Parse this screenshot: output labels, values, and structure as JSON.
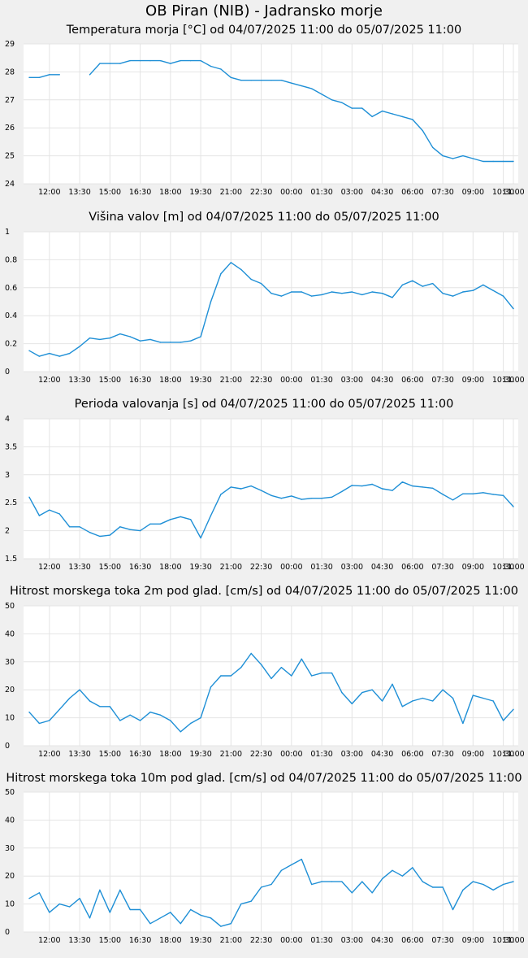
{
  "page_title": "OB Piran (NIB) - Jadransko morje",
  "line_color": "#1e8fd6",
  "x_tick_labels": [
    "12:00",
    "13:30",
    "15:00",
    "16:30",
    "18:00",
    "19:30",
    "21:00",
    "22:30",
    "00:00",
    "01:30",
    "03:00",
    "04:30",
    "06:00",
    "07:30",
    "09:00",
    "10:30",
    "11:00"
  ],
  "chart_data": [
    {
      "type": "line",
      "title": "Temperatura morja [°C] od 04/07/2025 11:00 do 05/07/2025 11:00",
      "ylim": [
        24,
        29
      ],
      "y_ticks": [
        "24",
        "25",
        "26",
        "27",
        "28",
        "29"
      ],
      "series": [
        {
          "values": [
            27.8,
            27.8,
            27.9,
            27.9,
            null,
            null,
            27.9,
            28.3,
            28.3,
            28.3,
            28.4,
            28.4,
            28.4,
            28.4,
            28.3,
            28.4,
            28.4,
            28.4,
            28.2,
            28.1,
            27.8,
            27.7,
            27.7,
            27.7,
            27.7,
            27.7,
            27.6,
            27.5,
            27.4,
            27.2,
            27.0,
            26.9,
            26.7,
            26.7,
            26.4,
            26.6,
            26.5,
            26.4,
            26.3,
            25.9,
            25.3,
            25.0,
            24.9,
            25.0,
            24.9,
            24.8,
            24.8,
            24.8,
            24.8
          ]
        }
      ]
    },
    {
      "type": "line",
      "title": "Višina valov [m] od 04/07/2025 11:00 do 05/07/2025 11:00",
      "ylim": [
        0,
        1
      ],
      "y_ticks": [
        "0",
        "0.2",
        "0.4",
        "0.6",
        "0.8",
        "1"
      ],
      "series": [
        {
          "values": [
            0.15,
            0.11,
            0.13,
            0.11,
            0.13,
            0.18,
            0.24,
            0.23,
            0.24,
            0.27,
            0.25,
            0.22,
            0.23,
            0.21,
            0.21,
            0.21,
            0.22,
            0.25,
            0.5,
            0.7,
            0.78,
            0.73,
            0.66,
            0.63,
            0.56,
            0.54,
            0.57,
            0.57,
            0.54,
            0.55,
            0.57,
            0.56,
            0.57,
            0.55,
            0.57,
            0.56,
            0.53,
            0.62,
            0.65,
            0.61,
            0.63,
            0.56,
            0.54,
            0.57,
            0.58,
            0.62,
            0.58,
            0.54,
            0.45
          ]
        }
      ]
    },
    {
      "type": "line",
      "title": "Perioda valovanja [s] od 04/07/2025 11:00 do 05/07/2025 11:00",
      "ylim": [
        1.5,
        4
      ],
      "y_ticks": [
        "1.5",
        "2",
        "2.5",
        "3",
        "3.5",
        "4"
      ],
      "series": [
        {
          "values": [
            2.6,
            2.27,
            2.37,
            2.3,
            2.07,
            2.07,
            1.97,
            1.9,
            1.92,
            2.07,
            2.02,
            2.0,
            2.12,
            2.12,
            2.2,
            2.25,
            2.2,
            1.87,
            2.27,
            2.65,
            2.78,
            2.75,
            2.8,
            2.72,
            2.63,
            2.58,
            2.62,
            2.56,
            2.58,
            2.58,
            2.6,
            2.7,
            2.81,
            2.8,
            2.83,
            2.75,
            2.72,
            2.87,
            2.8,
            2.78,
            2.76,
            2.65,
            2.55,
            2.66,
            2.66,
            2.68,
            2.65,
            2.63,
            2.43
          ]
        }
      ]
    },
    {
      "type": "line",
      "title": "Hitrost morskega toka 2m pod glad. [cm/s] od 04/07/2025 11:00 do 05/07/2025 11:00",
      "ylim": [
        0,
        50
      ],
      "y_ticks": [
        "0",
        "10",
        "20",
        "30",
        "40",
        "50"
      ],
      "series": [
        {
          "values": [
            12,
            8,
            9,
            13,
            17,
            20,
            16,
            14,
            14,
            9,
            11,
            9,
            12,
            11,
            9,
            5,
            8,
            10,
            21,
            25,
            25,
            28,
            33,
            29,
            24,
            28,
            25,
            31,
            25,
            26,
            26,
            19,
            15,
            19,
            20,
            16,
            22,
            14,
            16,
            17,
            16,
            20,
            17,
            8,
            18,
            17,
            16,
            9,
            13
          ]
        }
      ]
    },
    {
      "type": "line",
      "title": "Hitrost morskega toka 10m pod glad. [cm/s] od 04/07/2025 11:00 do 05/07/2025 11:00",
      "ylim": [
        0,
        50
      ],
      "y_ticks": [
        "0",
        "10",
        "20",
        "30",
        "40",
        "50"
      ],
      "series": [
        {
          "values": [
            12,
            14,
            7,
            10,
            9,
            12,
            5,
            15,
            7,
            15,
            8,
            8,
            3,
            5,
            7,
            3,
            8,
            6,
            5,
            2,
            3,
            10,
            11,
            16,
            17,
            22,
            24,
            26,
            17,
            18,
            18,
            18,
            14,
            18,
            14,
            19,
            22,
            20,
            23,
            18,
            16,
            16,
            8,
            15,
            18,
            17,
            15,
            17,
            18
          ]
        }
      ]
    }
  ]
}
